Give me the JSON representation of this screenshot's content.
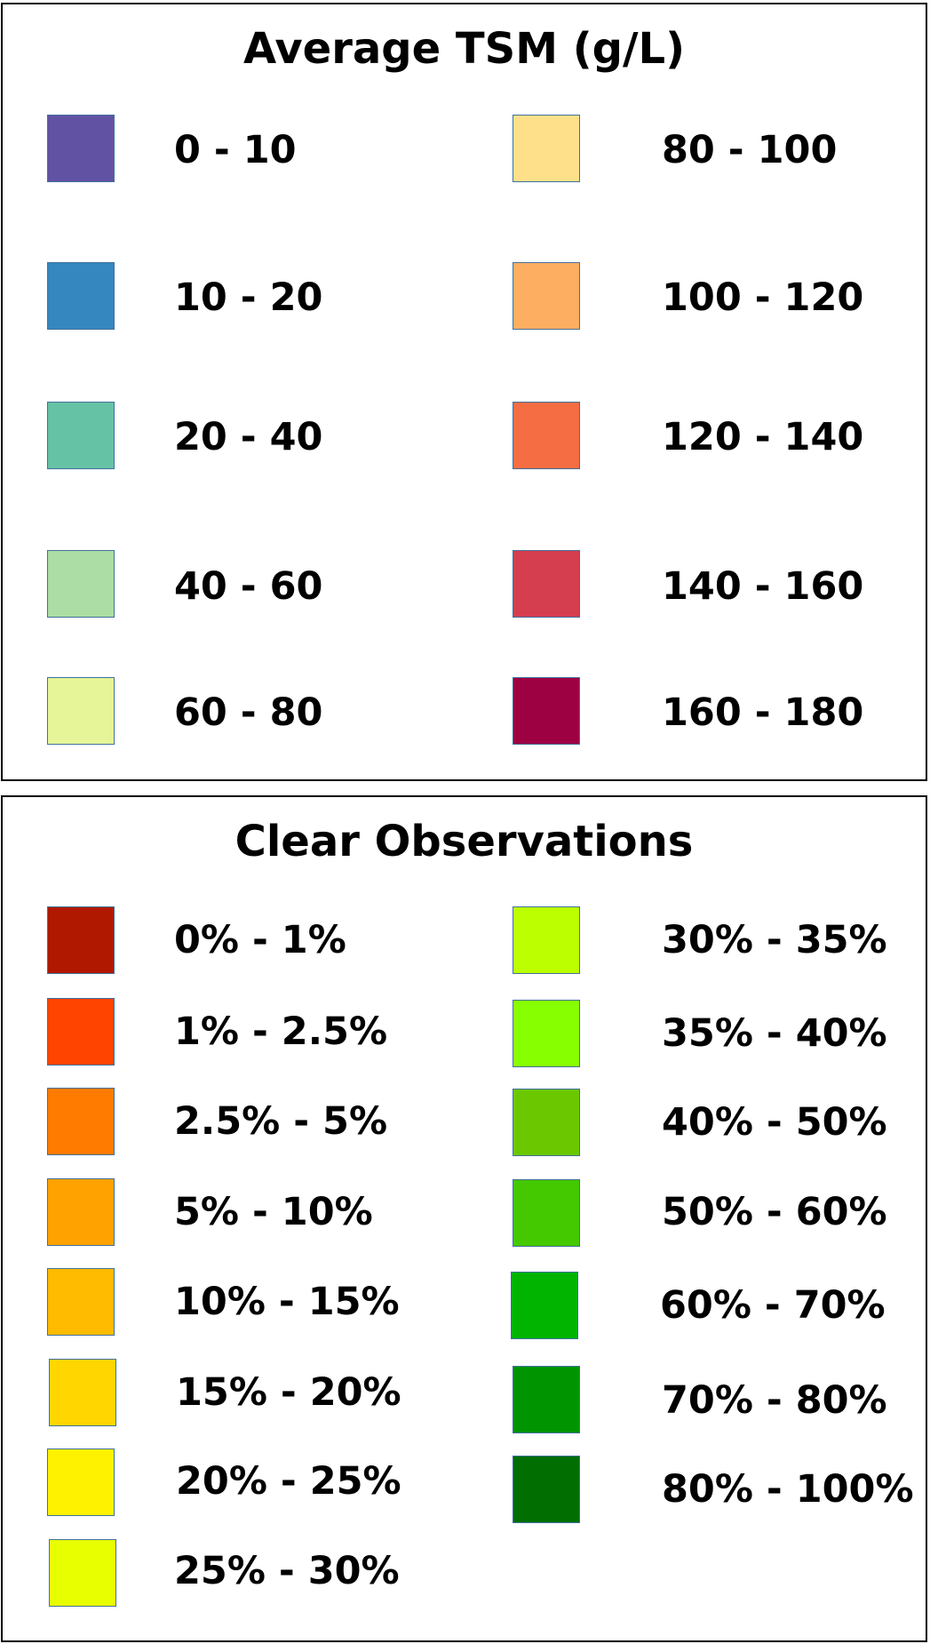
{
  "tsm": {
    "title": "Average TSM (g/L)",
    "items": [
      {
        "label": "0 - 10",
        "color": "#6252a3"
      },
      {
        "label": "10 - 20",
        "color": "#3587bf"
      },
      {
        "label": "20 - 40",
        "color": "#66c2a5"
      },
      {
        "label": "40 - 60",
        "color": "#abdda4"
      },
      {
        "label": "60 - 80",
        "color": "#e6f598"
      },
      {
        "label": "80 - 100",
        "color": "#fee08b"
      },
      {
        "label": "100 - 120",
        "color": "#fdae61"
      },
      {
        "label": "120 - 140",
        "color": "#f46d43"
      },
      {
        "label": "140 - 160",
        "color": "#d53e4f"
      },
      {
        "label": "160 - 180",
        "color": "#9e0142"
      }
    ]
  },
  "observations": {
    "title": "Clear Observations",
    "items": [
      {
        "label": "0% - 1%",
        "color": "#b01800"
      },
      {
        "label": "1% - 2.5%",
        "color": "#ff4400"
      },
      {
        "label": "2.5% - 5%",
        "color": "#ff7b00"
      },
      {
        "label": "5% - 10%",
        "color": "#ffa200"
      },
      {
        "label": "10% - 15%",
        "color": "#ffbb00"
      },
      {
        "label": "15% - 20%",
        "color": "#ffd600"
      },
      {
        "label": "20% - 25%",
        "color": "#fff200"
      },
      {
        "label": "25% - 30%",
        "color": "#e8ff00"
      },
      {
        "label": "30% - 35%",
        "color": "#bbff00"
      },
      {
        "label": "35% - 40%",
        "color": "#88ff00"
      },
      {
        "label": "40% - 50%",
        "color": "#6bc800"
      },
      {
        "label": "50% - 60%",
        "color": "#44c800"
      },
      {
        "label": "60% - 70%",
        "color": "#00b400"
      },
      {
        "label": "70% - 80%",
        "color": "#009400"
      },
      {
        "label": "80% - 100%",
        "color": "#006e00"
      }
    ]
  }
}
